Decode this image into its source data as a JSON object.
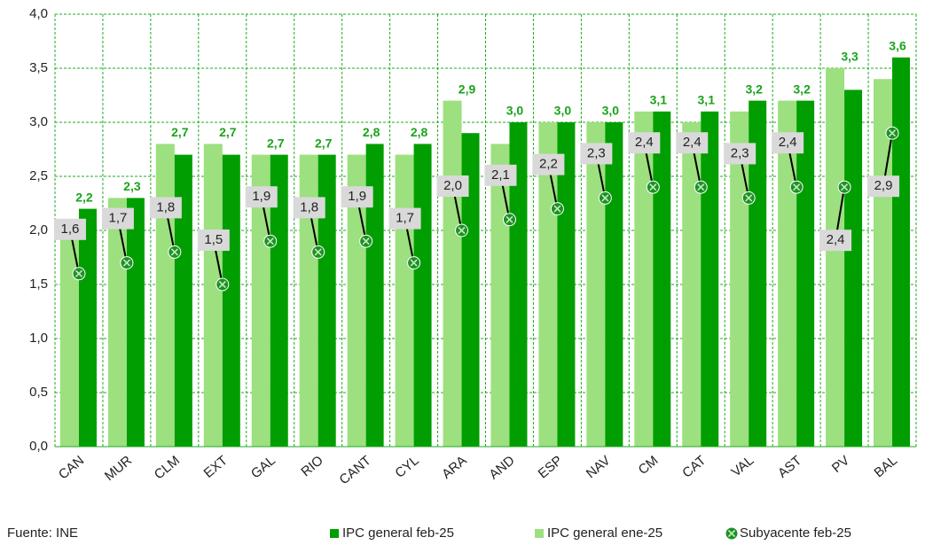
{
  "chart_data": {
    "type": "bar",
    "categories": [
      "CAN",
      "MUR",
      "CLM",
      "EXT",
      "GAL",
      "RIO",
      "CANT",
      "CYL",
      "ARA",
      "AND",
      "ESP",
      "NAV",
      "CM",
      "CAT",
      "VAL",
      "AST",
      "PV",
      "BAL"
    ],
    "series": [
      {
        "name": "IPC general feb-25",
        "color": "#009e00",
        "label_color": "#1aa31a",
        "values": [
          2.2,
          2.3,
          2.7,
          2.7,
          2.7,
          2.7,
          2.8,
          2.8,
          2.9,
          3.0,
          3.0,
          3.0,
          3.1,
          3.1,
          3.2,
          3.2,
          3.3,
          3.6
        ],
        "value_labels": [
          "2,2",
          "2,3",
          "2,7",
          "2,7",
          "2,7",
          "2,7",
          "2,8",
          "2,8",
          "2,9",
          "3,0",
          "3,0",
          "3,0",
          "3,1",
          "3,1",
          "3,2",
          "3,2",
          "3,3",
          "3,6"
        ]
      },
      {
        "name": "IPC general ene-25",
        "color": "#9de07f",
        "values": [
          2.1,
          2.3,
          2.8,
          2.8,
          2.7,
          2.7,
          2.7,
          2.7,
          3.2,
          2.8,
          3.0,
          3.0,
          3.1,
          3.0,
          3.1,
          3.2,
          3.5,
          3.4
        ]
      },
      {
        "name": "Subyacente feb-25",
        "color": "#1f8f2a",
        "type": "scatter",
        "values": [
          1.6,
          1.7,
          1.8,
          1.5,
          1.9,
          1.8,
          1.9,
          1.7,
          2.0,
          2.1,
          2.2,
          2.3,
          2.4,
          2.4,
          2.3,
          2.4,
          2.4,
          2.9
        ],
        "value_labels": [
          "1,6",
          "1,7",
          "1,8",
          "1,5",
          "1,9",
          "1,8",
          "1,9",
          "1,7",
          "2,0",
          "2,1",
          "2,2",
          "2,3",
          "2,4",
          "2,4",
          "2,3",
          "2,4",
          "2,4",
          "2,9"
        ]
      }
    ],
    "ylim": [
      0,
      4
    ],
    "yticks": [
      {
        "value": 0,
        "label": "0,0"
      },
      {
        "value": 0.5,
        "label": "0,5"
      },
      {
        "value": 1,
        "label": "1,0"
      },
      {
        "value": 1.5,
        "label": "1,5"
      },
      {
        "value": 2,
        "label": "2,0"
      },
      {
        "value": 2.5,
        "label": "2,5"
      },
      {
        "value": 3,
        "label": "3,0"
      },
      {
        "value": 3.5,
        "label": "3,5"
      },
      {
        "value": 4,
        "label": "4,0"
      }
    ],
    "grid": true,
    "source": "Fuente:  INE"
  }
}
